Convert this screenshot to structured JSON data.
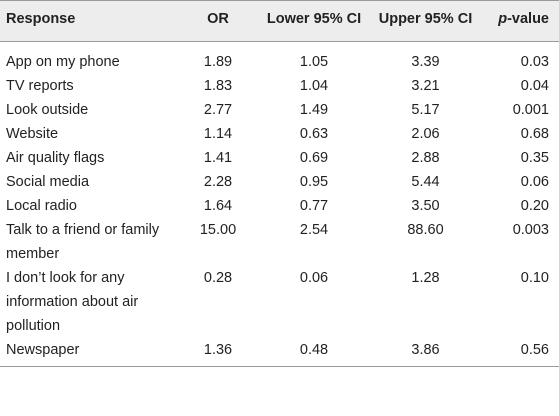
{
  "table": {
    "headers": {
      "response": "Response",
      "or": "OR",
      "lower": "Lower 95% CI",
      "upper": "Upper 95% CI",
      "p_prefix": "p",
      "p_suffix": "-value"
    },
    "rows": [
      {
        "response": "App on my phone",
        "or": "1.89",
        "lower": "1.05",
        "upper": "3.39",
        "p": "0.03"
      },
      {
        "response": "TV reports",
        "or": "1.83",
        "lower": "1.04",
        "upper": "3.21",
        "p": "0.04"
      },
      {
        "response": "Look outside",
        "or": "2.77",
        "lower": "1.49",
        "upper": "5.17",
        "p": "0.001"
      },
      {
        "response": "Website",
        "or": "1.14",
        "lower": "0.63",
        "upper": "2.06",
        "p": "0.68"
      },
      {
        "response": "Air quality flags",
        "or": "1.41",
        "lower": "0.69",
        "upper": "2.88",
        "p": "0.35"
      },
      {
        "response": "Social media",
        "or": "2.28",
        "lower": "0.95",
        "upper": "5.44",
        "p": "0.06"
      },
      {
        "response": "Local radio",
        "or": "1.64",
        "lower": "0.77",
        "upper": "3.50",
        "p": "0.20"
      },
      {
        "response": "Talk to a friend or family member",
        "or": "15.00",
        "lower": "2.54",
        "upper": "88.60",
        "p": "0.003"
      },
      {
        "response": "I don’t look for any information about air pollution",
        "or": "0.28",
        "lower": "0.06",
        "upper": "1.28",
        "p": "0.10"
      },
      {
        "response": "Newspaper",
        "or": "1.36",
        "lower": "0.48",
        "upper": "3.86",
        "p": "0.56"
      }
    ]
  }
}
